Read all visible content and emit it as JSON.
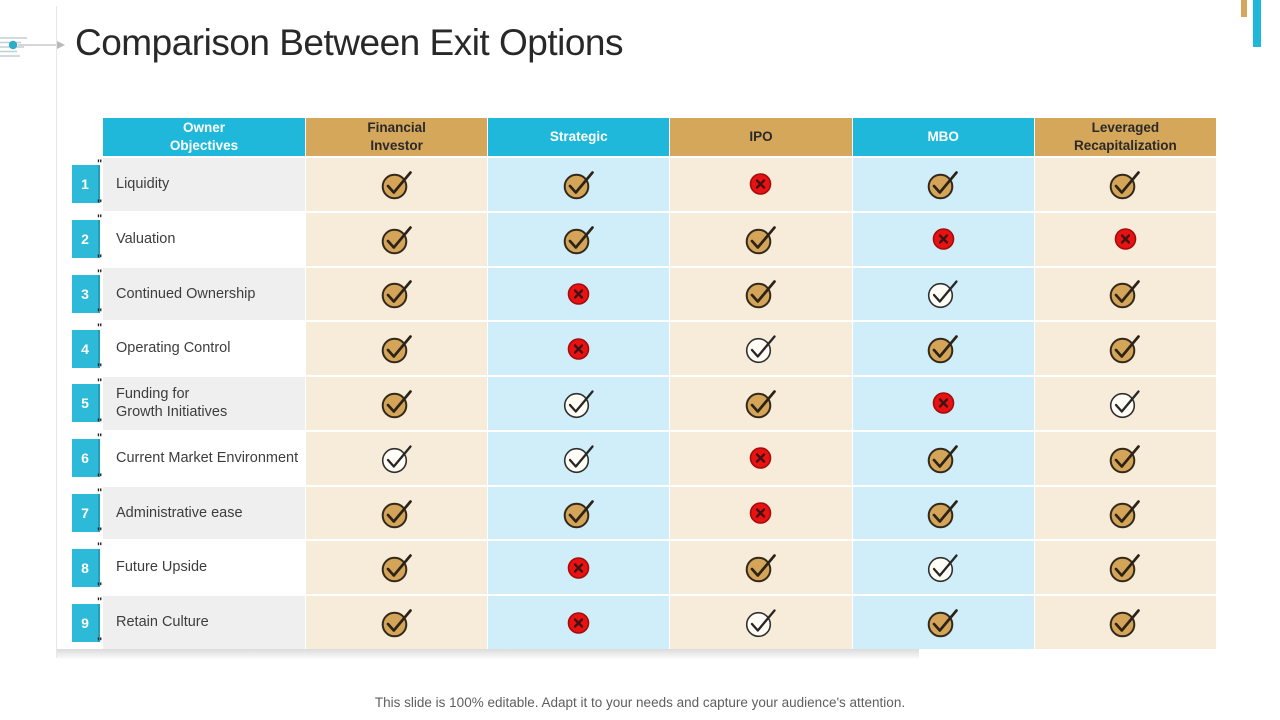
{
  "slide": {
    "title": "Comparison Between Exit Options",
    "footnote": "This slide is 100% editable. Adapt it to your needs and capture your audience's attention.",
    "quote_mark": "\""
  },
  "colors": {
    "accent_cyan": "#1fb8da",
    "accent_gold": "#d5a75b",
    "cell_cream": "#f7ecda",
    "cell_light_cyan": "#cfeef9",
    "row_label_gray": "#f0efef",
    "cross_red": "#e91212"
  },
  "icons": {
    "check-filled": "gold-check-circle-icon",
    "check-outline": "outline-check-circle-icon",
    "cross": "red-cross-circle-icon"
  },
  "chart_data": {
    "type": "table",
    "title": "Comparison Between Exit Options",
    "columns": [
      {
        "label": "Owner\nObjectives",
        "theme": "cyan"
      },
      {
        "label": "Financial\nInvestor",
        "theme": "gold"
      },
      {
        "label": "Strategic",
        "theme": "cyan"
      },
      {
        "label": "IPO",
        "theme": "gold"
      },
      {
        "label": "MBO",
        "theme": "cyan"
      },
      {
        "label": "Leveraged\nRecapitalization",
        "theme": "gold"
      }
    ],
    "rows": [
      {
        "num": "1",
        "objective": "Liquidity",
        "values": [
          "check-filled",
          "check-filled",
          "cross",
          "check-filled",
          "check-filled"
        ]
      },
      {
        "num": "2",
        "objective": "Valuation",
        "values": [
          "check-filled",
          "check-filled",
          "check-filled",
          "cross",
          "cross"
        ]
      },
      {
        "num": "3",
        "objective": "Continued Ownership",
        "values": [
          "check-filled",
          "cross",
          "check-filled",
          "check-outline",
          "check-filled"
        ]
      },
      {
        "num": "4",
        "objective": "Operating Control",
        "values": [
          "check-filled",
          "cross",
          "check-outline",
          "check-filled",
          "check-filled"
        ]
      },
      {
        "num": "5",
        "objective": "Funding for\nGrowth Initiatives",
        "values": [
          "check-filled",
          "check-outline",
          "check-filled",
          "cross",
          "check-outline"
        ]
      },
      {
        "num": "6",
        "objective": "Current Market Environment",
        "values": [
          "check-outline",
          "check-outline",
          "cross",
          "check-filled",
          "check-filled"
        ]
      },
      {
        "num": "7",
        "objective": "Administrative ease",
        "values": [
          "check-filled",
          "check-filled",
          "cross",
          "check-filled",
          "check-filled"
        ]
      },
      {
        "num": "8",
        "objective": "Future Upside",
        "values": [
          "check-filled",
          "cross",
          "check-filled",
          "check-outline",
          "check-filled"
        ]
      },
      {
        "num": "9",
        "objective": "Retain Culture",
        "values": [
          "check-filled",
          "cross",
          "check-outline",
          "check-filled",
          "check-filled"
        ]
      }
    ]
  }
}
